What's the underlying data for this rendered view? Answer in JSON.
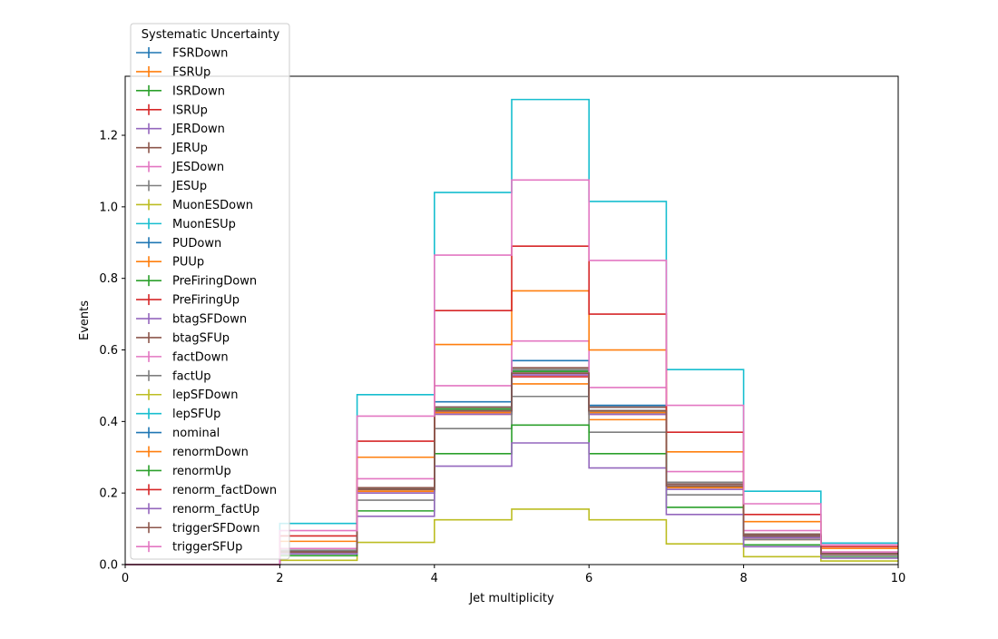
{
  "chart_data": {
    "type": "line",
    "drawstyle": "step",
    "title": "",
    "xlabel": "Jet multiplicity",
    "ylabel": "Events",
    "xlim": [
      0,
      10
    ],
    "ylim": [
      0,
      1.365
    ],
    "xticks": [
      "0",
      "2",
      "4",
      "6",
      "8",
      "10"
    ],
    "yticks": [
      "0.0",
      "0.2",
      "0.4",
      "0.6",
      "0.8",
      "1.0",
      "1.2"
    ],
    "grid": false,
    "legend": {
      "title": "Systematic Uncertainty",
      "placement": "upper-left (outside top)"
    },
    "bin_edges": [
      0,
      1,
      2,
      3,
      4,
      5,
      6,
      7,
      8,
      9,
      10
    ],
    "series": [
      {
        "name": "FSRDown",
        "color": "#1f77b4",
        "values": [
          0,
          0,
          0.03,
          0.21,
          0.455,
          0.57,
          0.445,
          0.23,
          0.085,
          0.03
        ]
      },
      {
        "name": "FSRUp",
        "color": "#ff7f0e",
        "values": [
          0,
          0,
          0.03,
          0.2,
          0.42,
          0.505,
          0.405,
          0.21,
          0.07,
          0.025
        ]
      },
      {
        "name": "ISRDown",
        "color": "#2ca02c",
        "values": [
          0,
          0,
          0.035,
          0.205,
          0.43,
          0.545,
          0.425,
          0.22,
          0.08,
          0.03
        ]
      },
      {
        "name": "ISRUp",
        "color": "#d62728",
        "values": [
          0,
          0,
          0.035,
          0.205,
          0.425,
          0.525,
          0.42,
          0.215,
          0.08,
          0.03
        ]
      },
      {
        "name": "JERDown",
        "color": "#9467bd",
        "values": [
          0,
          0,
          0.035,
          0.21,
          0.43,
          0.54,
          0.43,
          0.22,
          0.08,
          0.03
        ]
      },
      {
        "name": "JERUp",
        "color": "#8c564b",
        "values": [
          0,
          0,
          0.035,
          0.21,
          0.43,
          0.54,
          0.43,
          0.22,
          0.08,
          0.03
        ]
      },
      {
        "name": "JESDown",
        "color": "#e377c2",
        "values": [
          0,
          0,
          0.035,
          0.2,
          0.425,
          0.53,
          0.42,
          0.215,
          0.075,
          0.025
        ]
      },
      {
        "name": "JESUp",
        "color": "#7f7f7f",
        "values": [
          0,
          0,
          0.035,
          0.215,
          0.44,
          0.545,
          0.44,
          0.23,
          0.085,
          0.035
        ]
      },
      {
        "name": "MuonESDown",
        "color": "#bcbd22",
        "values": [
          0,
          0,
          0.035,
          0.21,
          0.43,
          0.54,
          0.43,
          0.22,
          0.08,
          0.03
        ]
      },
      {
        "name": "MuonESUp",
        "color": "#17becf",
        "values": [
          0,
          0,
          0.035,
          0.21,
          0.43,
          0.54,
          0.43,
          0.22,
          0.08,
          0.03
        ]
      },
      {
        "name": "PUDown",
        "color": "#1f77b4",
        "values": [
          0,
          0,
          0.035,
          0.215,
          0.44,
          0.54,
          0.44,
          0.225,
          0.08,
          0.03
        ]
      },
      {
        "name": "PUUp",
        "color": "#ff7f0e",
        "values": [
          0,
          0,
          0.035,
          0.205,
          0.425,
          0.535,
          0.425,
          0.215,
          0.08,
          0.03
        ]
      },
      {
        "name": "PreFiringDown",
        "color": "#2ca02c",
        "values": [
          0,
          0,
          0.035,
          0.21,
          0.435,
          0.54,
          0.43,
          0.22,
          0.08,
          0.03
        ]
      },
      {
        "name": "PreFiringUp",
        "color": "#d62728",
        "values": [
          0,
          0,
          0.035,
          0.21,
          0.43,
          0.535,
          0.43,
          0.22,
          0.08,
          0.03
        ]
      },
      {
        "name": "btagSFDown",
        "color": "#9467bd",
        "values": [
          0,
          0,
          0.03,
          0.2,
          0.42,
          0.53,
          0.42,
          0.21,
          0.075,
          0.03
        ]
      },
      {
        "name": "btagSFUp",
        "color": "#8c564b",
        "values": [
          0,
          0,
          0.035,
          0.215,
          0.44,
          0.55,
          0.44,
          0.225,
          0.085,
          0.03
        ]
      },
      {
        "name": "factDown",
        "color": "#e377c2",
        "values": [
          0,
          0,
          0.045,
          0.24,
          0.5,
          0.625,
          0.495,
          0.26,
          0.095,
          0.035
        ]
      },
      {
        "name": "factUp",
        "color": "#7f7f7f",
        "values": [
          0,
          0,
          0.04,
          0.18,
          0.38,
          0.47,
          0.37,
          0.195,
          0.07,
          0.025
        ]
      },
      {
        "name": "lepSFDown",
        "color": "#bcbd22",
        "values": [
          0,
          0,
          0.012,
          0.062,
          0.125,
          0.155,
          0.125,
          0.058,
          0.022,
          0.01
        ]
      },
      {
        "name": "lepSFUp",
        "color": "#17becf",
        "values": [
          0,
          0,
          0.115,
          0.475,
          1.04,
          1.3,
          1.015,
          0.545,
          0.205,
          0.06
        ]
      },
      {
        "name": "nominal",
        "color": "#1f77b4",
        "values": [
          0,
          0,
          0.035,
          0.21,
          0.43,
          0.535,
          0.43,
          0.22,
          0.08,
          0.03
        ]
      },
      {
        "name": "renormDown",
        "color": "#ff7f0e",
        "values": [
          0,
          0,
          0.065,
          0.3,
          0.615,
          0.765,
          0.6,
          0.315,
          0.12,
          0.045
        ]
      },
      {
        "name": "renormUp",
        "color": "#2ca02c",
        "values": [
          0,
          0,
          0.025,
          0.15,
          0.31,
          0.39,
          0.31,
          0.16,
          0.055,
          0.02
        ]
      },
      {
        "name": "renorm_factDown",
        "color": "#d62728",
        "values": [
          0,
          0,
          0.08,
          0.345,
          0.71,
          0.89,
          0.7,
          0.37,
          0.14,
          0.05
        ]
      },
      {
        "name": "renorm_factUp",
        "color": "#9467bd",
        "values": [
          0,
          0,
          0.03,
          0.135,
          0.275,
          0.34,
          0.27,
          0.14,
          0.05,
          0.018
        ]
      },
      {
        "name": "triggerSFDown",
        "color": "#8c564b",
        "values": [
          0,
          0,
          0.035,
          0.21,
          0.43,
          0.535,
          0.43,
          0.22,
          0.08,
          0.03
        ]
      },
      {
        "name": "triggerSFUp",
        "color": "#e377c2",
        "values": [
          0,
          0,
          0.095,
          0.415,
          0.865,
          1.075,
          0.85,
          0.445,
          0.17,
          0.055
        ]
      }
    ]
  }
}
